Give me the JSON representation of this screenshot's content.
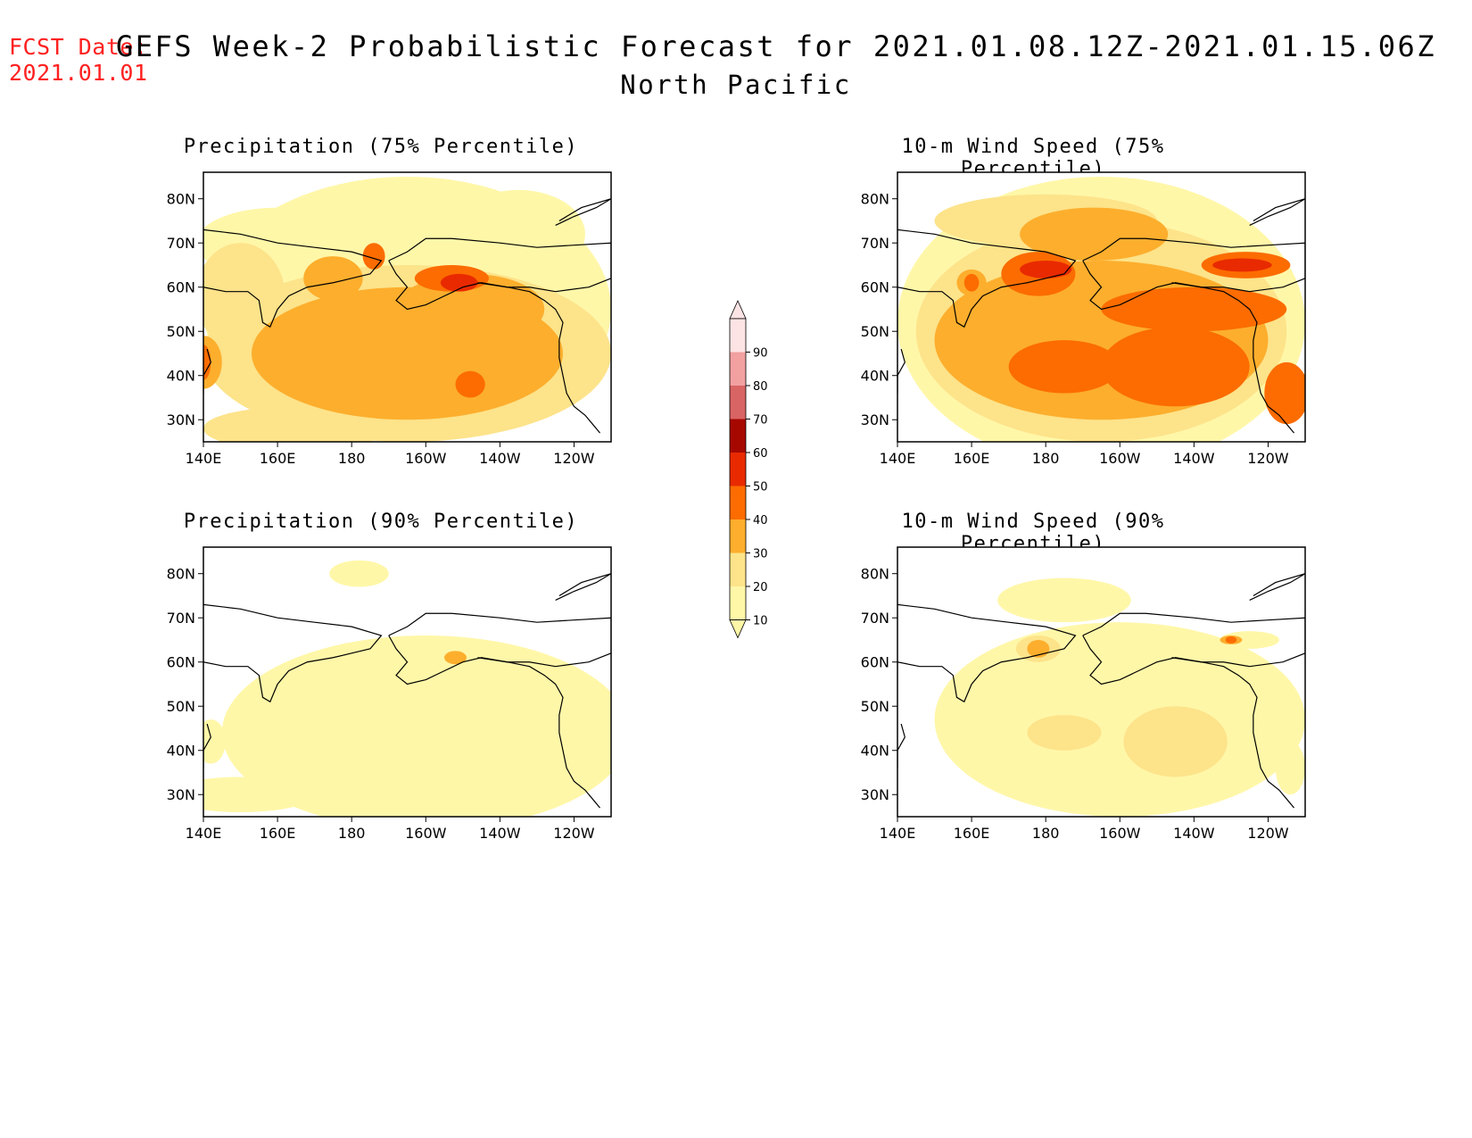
{
  "header": {
    "fcst_label": "FCST Date:",
    "fcst_date": "2021.01.01",
    "title": "GEFS Week-2 Probabilistic Forecast for 2021.01.08.12Z-2021.01.15.06Z",
    "subtitle": "North Pacific"
  },
  "axes": {
    "lon_ticks": [
      "140E",
      "160E",
      "180",
      "160W",
      "140W",
      "120W"
    ],
    "lat_ticks": [
      "80N",
      "70N",
      "60N",
      "50N",
      "40N",
      "30N"
    ]
  },
  "panels": [
    {
      "id": "precip75",
      "title": "Precipitation (75% Percentile)"
    },
    {
      "id": "wind75",
      "title": "10-m Wind Speed (75% Percentile)"
    },
    {
      "id": "precip90",
      "title": "Precipitation (90% Percentile)"
    },
    {
      "id": "wind90",
      "title": "10-m Wind Speed (90% Percentile)"
    }
  ],
  "colorbar": {
    "levels": [
      "10",
      "20",
      "30",
      "40",
      "50",
      "60",
      "70",
      "80",
      "90"
    ],
    "colors": [
      "#fff7a8",
      "#fde38a",
      "#fdae2d",
      "#fc6c00",
      "#e92a00",
      "#a60800",
      "#d96464",
      "#f2a0a0",
      "#fde4e4"
    ]
  }
}
